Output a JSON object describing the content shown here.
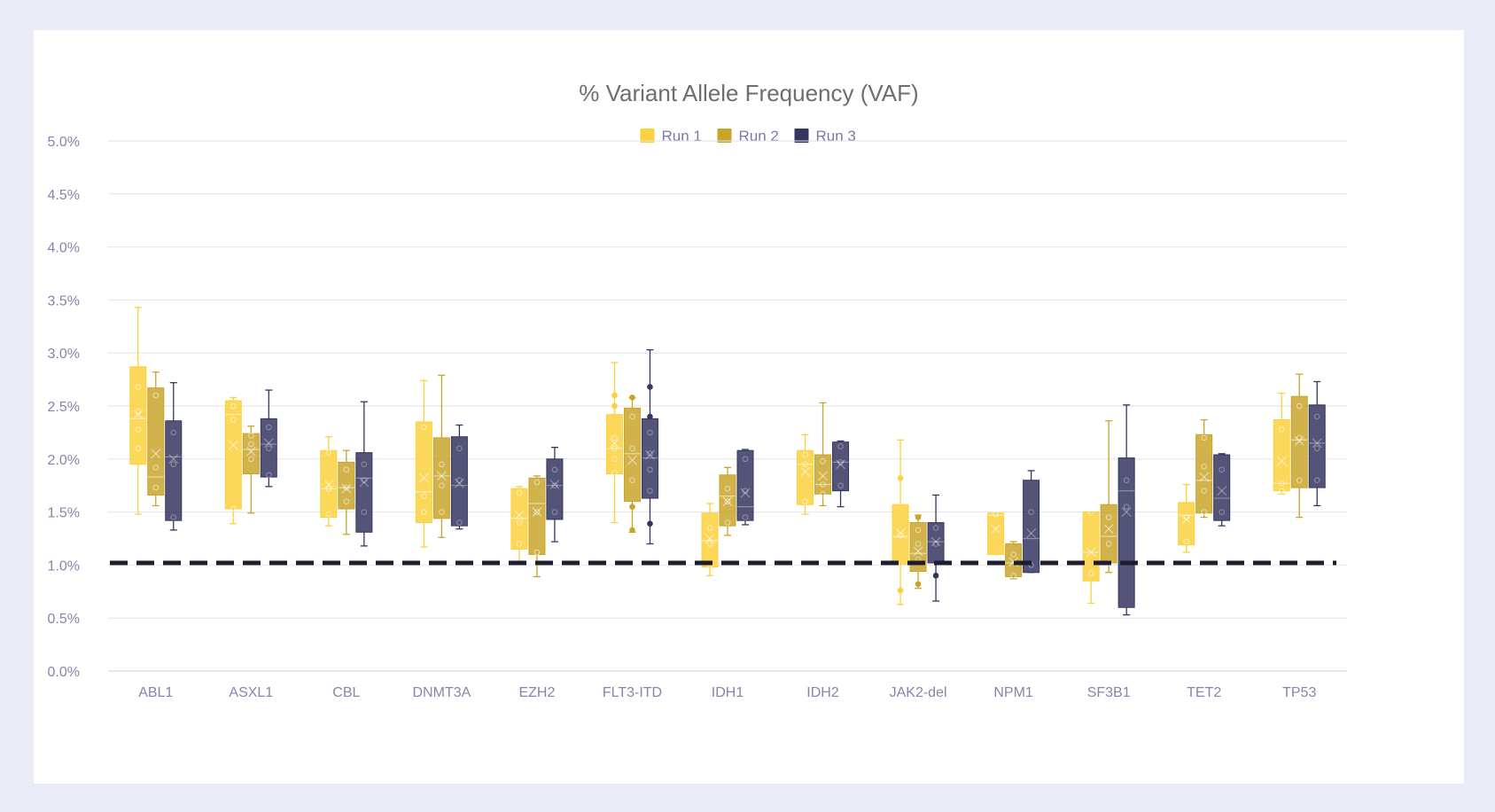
{
  "chart_data": {
    "type": "box",
    "title": "% Variant Allele Frequency (VAF)",
    "xlabel": "",
    "ylabel": "",
    "categories": [
      "ABL1",
      "ASXL1",
      "CBL",
      "DNMT3A",
      "EZH2",
      "FLT3-ITD",
      "IDH1",
      "IDH2",
      "JAK2-del",
      "NPM1",
      "SF3B1",
      "TET2",
      "TP53"
    ],
    "y_ticks": [
      "0.0%",
      "0.5%",
      "1.0%",
      "1.5%",
      "2.0%",
      "2.5%",
      "3.0%",
      "3.5%",
      "4.0%",
      "4.5%",
      "5.0%"
    ],
    "ylim": [
      0,
      5.0
    ],
    "grid": true,
    "legend_position": "top-center",
    "threshold_line": 1.02,
    "series": [
      {
        "name": "Run 1",
        "color": "#fbd13d",
        "boxes": [
          {
            "min": 1.48,
            "q1": 1.95,
            "median": 2.38,
            "q3": 2.87,
            "max": 3.43,
            "mean": 2.42,
            "points": [
              2.1,
              2.28,
              2.45,
              2.68
            ]
          },
          {
            "min": 1.39,
            "q1": 1.53,
            "median": 2.42,
            "q3": 2.55,
            "max": 2.58,
            "mean": 2.13,
            "points": [
              1.53,
              2.37,
              2.5
            ]
          },
          {
            "min": 1.37,
            "q1": 1.45,
            "median": 1.72,
            "q3": 2.08,
            "max": 2.21,
            "mean": 1.76,
            "points": [
              1.48,
              1.72,
              2.06
            ]
          },
          {
            "min": 1.17,
            "q1": 1.4,
            "median": 1.69,
            "q3": 2.35,
            "max": 2.74,
            "mean": 1.82,
            "points": [
              1.5,
              1.65,
              2.3
            ]
          },
          {
            "min": 1.02,
            "q1": 1.15,
            "median": 1.44,
            "q3": 1.72,
            "max": 1.74,
            "mean": 1.47,
            "points": [
              1.2,
              1.4,
              1.68
            ]
          },
          {
            "min": 1.4,
            "q1": 1.86,
            "median": 2.1,
            "q3": 2.42,
            "max": 2.91,
            "mean": 2.15,
            "points": [
              1.87,
              2.0,
              2.1,
              2.2,
              2.5,
              2.6
            ]
          },
          {
            "min": 0.9,
            "q1": 0.98,
            "median": 1.23,
            "q3": 1.49,
            "max": 1.58,
            "mean": 1.25,
            "points": [
              1.0,
              1.2,
              1.35
            ]
          },
          {
            "min": 1.48,
            "q1": 1.57,
            "median": 1.95,
            "q3": 2.08,
            "max": 2.23,
            "mean": 1.88,
            "points": [
              1.6,
              1.95,
              2.04
            ]
          },
          {
            "min": 0.63,
            "q1": 1.01,
            "median": 1.27,
            "q3": 1.57,
            "max": 2.18,
            "mean": 1.3,
            "points": [
              0.76,
              1.28,
              1.82
            ]
          },
          {
            "min": 1.1,
            "q1": 1.1,
            "median": 1.47,
            "q3": 1.49,
            "max": 1.49,
            "mean": 1.34,
            "points": [
              1.48
            ]
          },
          {
            "min": 0.64,
            "q1": 0.85,
            "median": 1.12,
            "q3": 1.5,
            "max": 1.5,
            "mean": 1.12,
            "points": [
              0.92,
              1.5
            ]
          },
          {
            "min": 1.12,
            "q1": 1.19,
            "median": 1.47,
            "q3": 1.59,
            "max": 1.76,
            "mean": 1.43,
            "points": [
              1.22,
              1.45
            ]
          },
          {
            "min": 1.67,
            "q1": 1.7,
            "median": 1.77,
            "q3": 2.37,
            "max": 2.62,
            "mean": 1.98,
            "points": [
              1.7,
              1.77,
              2.28
            ]
          }
        ]
      },
      {
        "name": "Run 2",
        "color": "#c9a42b",
        "boxes": [
          {
            "min": 1.56,
            "q1": 1.66,
            "median": 1.83,
            "q3": 2.67,
            "max": 2.82,
            "mean": 2.05,
            "points": [
              1.73,
              1.92,
              2.6
            ]
          },
          {
            "min": 1.49,
            "q1": 1.86,
            "median": 2.09,
            "q3": 2.24,
            "max": 2.31,
            "mean": 2.07,
            "points": [
              2.0,
              2.14,
              2.22
            ]
          },
          {
            "min": 1.29,
            "q1": 1.53,
            "median": 1.73,
            "q3": 1.97,
            "max": 2.08,
            "mean": 1.72,
            "points": [
              1.6,
              1.73,
              1.9
            ]
          },
          {
            "min": 1.26,
            "q1": 1.44,
            "median": 1.84,
            "q3": 2.2,
            "max": 2.79,
            "mean": 1.84,
            "points": [
              1.5,
              1.75,
              1.95
            ]
          },
          {
            "min": 0.89,
            "q1": 1.1,
            "median": 1.58,
            "q3": 1.82,
            "max": 1.84,
            "mean": 1.5,
            "points": [
              1.12,
              1.5,
              1.78
            ]
          },
          {
            "min": 1.31,
            "q1": 1.6,
            "median": 2.05,
            "q3": 2.48,
            "max": 2.58,
            "mean": 1.99,
            "points": [
              1.33,
              1.55,
              1.8,
              2.1,
              2.4,
              2.58
            ]
          },
          {
            "min": 1.28,
            "q1": 1.37,
            "median": 1.65,
            "q3": 1.85,
            "max": 1.92,
            "mean": 1.6,
            "points": [
              1.4,
              1.6,
              1.72
            ]
          },
          {
            "min": 1.56,
            "q1": 1.67,
            "median": 1.76,
            "q3": 2.04,
            "max": 2.53,
            "mean": 1.84,
            "points": [
              1.67,
              1.76,
              1.98
            ]
          },
          {
            "min": 0.78,
            "q1": 0.94,
            "median": 1.11,
            "q3": 1.4,
            "max": 1.47,
            "mean": 1.13,
            "points": [
              0.82,
              1.05,
              1.2,
              1.33,
              1.45
            ]
          },
          {
            "min": 0.87,
            "q1": 0.89,
            "median": 1.02,
            "q3": 1.2,
            "max": 1.22,
            "mean": 1.03,
            "points": [
              0.9,
              1.1
            ]
          },
          {
            "min": 0.93,
            "q1": 1.02,
            "median": 1.27,
            "q3": 1.57,
            "max": 2.36,
            "mean": 1.34,
            "points": [
              1.02,
              1.2,
              1.45
            ]
          },
          {
            "min": 1.45,
            "q1": 1.49,
            "median": 1.8,
            "q3": 2.23,
            "max": 2.37,
            "mean": 1.83,
            "points": [
              1.5,
              1.7,
              1.93,
              2.2
            ]
          },
          {
            "min": 1.45,
            "q1": 1.73,
            "median": 2.18,
            "q3": 2.59,
            "max": 2.8,
            "mean": 2.17,
            "points": [
              1.8,
              2.2,
              2.5
            ]
          }
        ]
      },
      {
        "name": "Run 3",
        "color": "#353660",
        "boxes": [
          {
            "min": 1.33,
            "q1": 1.42,
            "median": 2.02,
            "q3": 2.36,
            "max": 2.72,
            "mean": 2.0,
            "points": [
              1.45,
              1.95,
              2.25
            ]
          },
          {
            "min": 1.74,
            "q1": 1.83,
            "median": 2.14,
            "q3": 2.38,
            "max": 2.65,
            "mean": 2.15,
            "points": [
              1.85,
              2.1,
              2.3
            ]
          },
          {
            "min": 1.18,
            "q1": 1.31,
            "median": 1.82,
            "q3": 2.06,
            "max": 2.54,
            "mean": 1.78,
            "points": [
              1.5,
              1.8,
              1.95
            ]
          },
          {
            "min": 1.34,
            "q1": 1.37,
            "median": 1.75,
            "q3": 2.21,
            "max": 2.32,
            "mean": 1.77,
            "points": [
              1.4,
              1.8,
              2.1
            ]
          },
          {
            "min": 1.22,
            "q1": 1.43,
            "median": 1.75,
            "q3": 2.0,
            "max": 2.11,
            "mean": 1.76,
            "points": [
              1.5,
              1.75,
              1.9
            ]
          },
          {
            "min": 1.2,
            "q1": 1.63,
            "median": 2.01,
            "q3": 2.38,
            "max": 3.03,
            "mean": 2.04,
            "points": [
              1.39,
              1.7,
              1.9,
              2.05,
              2.25,
              2.4,
              2.68
            ]
          },
          {
            "min": 1.38,
            "q1": 1.42,
            "median": 1.55,
            "q3": 2.08,
            "max": 2.09,
            "mean": 1.68,
            "points": [
              1.45,
              1.7,
              2.0
            ]
          },
          {
            "min": 1.55,
            "q1": 1.7,
            "median": 1.97,
            "q3": 2.16,
            "max": 2.17,
            "mean": 1.95,
            "points": [
              1.75,
              1.97,
              2.12
            ]
          },
          {
            "min": 0.66,
            "q1": 1.02,
            "median": 1.22,
            "q3": 1.4,
            "max": 1.66,
            "mean": 1.22,
            "points": [
              0.9,
              1.2,
              1.35
            ]
          },
          {
            "min": 0.93,
            "q1": 0.93,
            "median": 1.25,
            "q3": 1.8,
            "max": 1.89,
            "mean": 1.3,
            "points": [
              1.0,
              1.5
            ]
          },
          {
            "min": 0.53,
            "q1": 0.6,
            "median": 1.7,
            "q3": 2.01,
            "max": 2.51,
            "mean": 1.5,
            "points": [
              1.55,
              1.8
            ]
          },
          {
            "min": 1.37,
            "q1": 1.42,
            "median": 1.63,
            "q3": 2.04,
            "max": 2.05,
            "mean": 1.7,
            "points": [
              1.5,
              1.9
            ]
          },
          {
            "min": 1.56,
            "q1": 1.73,
            "median": 2.15,
            "q3": 2.51,
            "max": 2.73,
            "mean": 2.15,
            "points": [
              1.8,
              2.1,
              2.4
            ]
          }
        ]
      }
    ]
  }
}
